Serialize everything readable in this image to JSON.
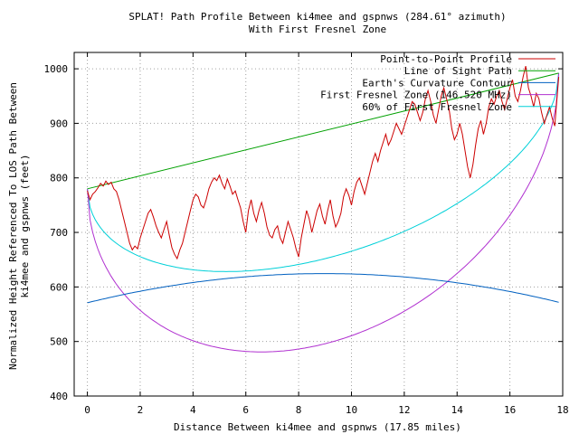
{
  "chart_data": {
    "type": "line",
    "title": "SPLAT! Path Profile Between ki4mee and gspnws (284.61° azimuth)",
    "subtitle": "With First Fresnel Zone",
    "xlabel": "Distance Between ki4mee and gspnws (17.85 miles)",
    "ylabel": [
      "Normalized Height Referenced To LOS Path Between",
      "ki4mee and gspnws (feet)"
    ],
    "xlim": [
      -0.5,
      18
    ],
    "ylim": [
      400,
      1030
    ],
    "xticks": [
      0,
      2,
      4,
      6,
      8,
      10,
      12,
      14,
      16,
      18
    ],
    "yticks": [
      400,
      500,
      600,
      700,
      800,
      900,
      1000
    ],
    "grid": true,
    "legend_position": "top-right",
    "path_length_miles": 17.85,
    "series": [
      {
        "name": "Point-to-Point Profile",
        "color": "#cc0000",
        "x": [
          0,
          0.1,
          0.2,
          0.3,
          0.4,
          0.5,
          0.6,
          0.7,
          0.8,
          0.9,
          1.0,
          1.1,
          1.2,
          1.3,
          1.4,
          1.5,
          1.6,
          1.7,
          1.8,
          1.9,
          2.0,
          2.1,
          2.2,
          2.3,
          2.4,
          2.5,
          2.6,
          2.7,
          2.8,
          2.9,
          3.0,
          3.1,
          3.2,
          3.3,
          3.4,
          3.5,
          3.6,
          3.7,
          3.8,
          3.9,
          4.0,
          4.1,
          4.2,
          4.3,
          4.4,
          4.5,
          4.6,
          4.7,
          4.8,
          4.9,
          5.0,
          5.1,
          5.2,
          5.3,
          5.4,
          5.5,
          5.6,
          5.7,
          5.8,
          5.9,
          6.0,
          6.1,
          6.2,
          6.3,
          6.4,
          6.5,
          6.6,
          6.7,
          6.8,
          6.9,
          7.0,
          7.1,
          7.2,
          7.3,
          7.4,
          7.5,
          7.6,
          7.7,
          7.8,
          7.9,
          8.0,
          8.1,
          8.2,
          8.3,
          8.4,
          8.5,
          8.6,
          8.7,
          8.8,
          8.9,
          9.0,
          9.1,
          9.2,
          9.3,
          9.4,
          9.5,
          9.6,
          9.7,
          9.8,
          9.9,
          10.0,
          10.1,
          10.2,
          10.3,
          10.4,
          10.5,
          10.6,
          10.7,
          10.8,
          10.9,
          11.0,
          11.1,
          11.2,
          11.3,
          11.4,
          11.5,
          11.6,
          11.7,
          11.8,
          11.9,
          12.0,
          12.1,
          12.2,
          12.3,
          12.4,
          12.5,
          12.6,
          12.7,
          12.8,
          12.9,
          13.0,
          13.1,
          13.2,
          13.3,
          13.4,
          13.5,
          13.6,
          13.7,
          13.8,
          13.9,
          14.0,
          14.1,
          14.2,
          14.3,
          14.4,
          14.5,
          14.6,
          14.7,
          14.8,
          14.9,
          15.0,
          15.1,
          15.2,
          15.3,
          15.4,
          15.5,
          15.6,
          15.7,
          15.8,
          15.9,
          16.0,
          16.1,
          16.2,
          16.3,
          16.4,
          16.5,
          16.6,
          16.7,
          16.8,
          16.9,
          17.0,
          17.1,
          17.2,
          17.3,
          17.4,
          17.5,
          17.6,
          17.7,
          17.85
        ],
        "values": [
          776,
          760,
          770,
          775,
          782,
          790,
          785,
          794,
          788,
          792,
          780,
          775,
          760,
          740,
          720,
          700,
          680,
          668,
          675,
          670,
          690,
          705,
          720,
          735,
          742,
          728,
          712,
          700,
          690,
          705,
          720,
          695,
          672,
          660,
          652,
          668,
          680,
          700,
          720,
          740,
          760,
          770,
          765,
          750,
          745,
          760,
          780,
          792,
          800,
          795,
          805,
          790,
          780,
          798,
          785,
          770,
          776,
          760,
          745,
          720,
          700,
          740,
          760,
          735,
          720,
          740,
          755,
          735,
          710,
          695,
          690,
          705,
          712,
          690,
          680,
          700,
          720,
          705,
          690,
          670,
          655,
          690,
          715,
          740,
          725,
          700,
          720,
          740,
          752,
          730,
          715,
          740,
          760,
          730,
          710,
          720,
          735,
          765,
          780,
          768,
          750,
          775,
          792,
          800,
          785,
          770,
          790,
          810,
          830,
          845,
          830,
          850,
          865,
          880,
          860,
          870,
          885,
          900,
          890,
          880,
          895,
          910,
          925,
          940,
          935,
          920,
          905,
          920,
          945,
          960,
          940,
          915,
          900,
          925,
          950,
          965,
          945,
          925,
          890,
          870,
          880,
          900,
          880,
          850,
          820,
          800,
          825,
          860,
          890,
          905,
          880,
          900,
          930,
          945,
          935,
          950,
          960,
          940,
          925,
          945,
          965,
          980,
          950,
          940,
          960,
          985,
          1005,
          965,
          950,
          930,
          955,
          945,
          920,
          900,
          915,
          930,
          910,
          895,
          985
        ]
      },
      {
        "name": "Line of Sight Path",
        "color": "#00a000",
        "x": [
          0,
          17.85
        ],
        "values": [
          780,
          992
        ]
      },
      {
        "name": "Earth's Curvature Contour",
        "color": "#0060c0",
        "function": "curvature",
        "base_left": 571,
        "base_right": 572,
        "bulge": 53
      },
      {
        "name": "First Fresnel Zone (146.520 MHz)",
        "color": "#b030d0",
        "function": "fresnel",
        "fraction": 1.0,
        "radius_mid_ft": 391
      },
      {
        "name": "60% of First Fresnel Zone",
        "color": "#00d0d8",
        "function": "fresnel",
        "fraction": 0.6,
        "radius_mid_ft": 235
      }
    ]
  }
}
